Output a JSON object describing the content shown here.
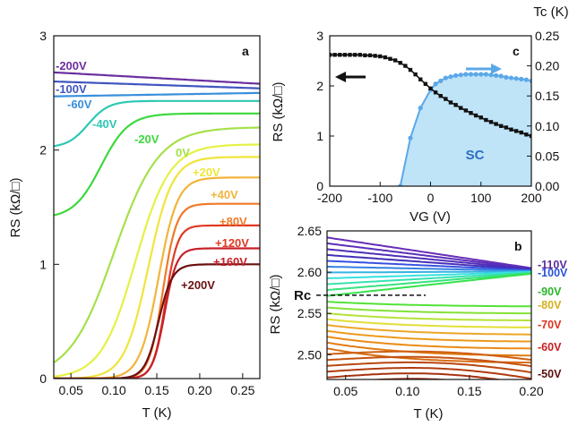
{
  "chart_data": [
    {
      "panel": "a",
      "type": "line",
      "panel_label": "a",
      "xlabel": "T (K)",
      "ylabel": "RS (kΩ/□)",
      "xlim": [
        0.03,
        0.27
      ],
      "ylim": [
        0,
        3
      ],
      "x_ticks": [
        "0.05",
        "0.10",
        "0.15",
        "0.20",
        "0.25"
      ],
      "x_tick_values": [
        0.05,
        0.1,
        0.15,
        0.2,
        0.25
      ],
      "y_ticks": [
        "0",
        "1",
        "2",
        "3"
      ],
      "y_tick_values": [
        0,
        1,
        2,
        3
      ],
      "series": [
        {
          "name": "-200V",
          "color": "#6a2fa0",
          "shape": "flat",
          "y_high": 2.58,
          "y_low": 2.68
        },
        {
          "name": "-100V",
          "color": "#3f55c0",
          "shape": "flat",
          "y_high": 2.54,
          "y_low": 2.6
        },
        {
          "name": "-60V",
          "color": "#3a8fdc",
          "shape": "flat",
          "y_high": 2.5,
          "y_low": 2.47
        },
        {
          "name": "-40V",
          "color": "#2ec8b4",
          "shape": "sig",
          "y_high": 2.43,
          "y_low": 2.02,
          "tc": 0.07,
          "w": 0.012
        },
        {
          "name": "-20V",
          "color": "#3dd83d",
          "shape": "sig",
          "y_high": 2.32,
          "y_low": 1.4,
          "tc": 0.085,
          "w": 0.016
        },
        {
          "name": "0V",
          "color": "#a6e04a",
          "shape": "sig",
          "y_high": 2.2,
          "y_low": 0.0,
          "tc": 0.1,
          "w": 0.026
        },
        {
          "name": "",
          "color": "#e4f244",
          "shape": "sig",
          "y_high": 2.05,
          "y_low": 0.0,
          "tc": 0.125,
          "w": 0.02
        },
        {
          "name": "+20V",
          "color": "#f0e53a",
          "shape": "sig",
          "y_high": 1.94,
          "y_low": 0.0,
          "tc": 0.14,
          "w": 0.014
        },
        {
          "name": "+40V",
          "color": "#f2b43a",
          "shape": "sig",
          "y_high": 1.76,
          "y_low": 0.0,
          "tc": 0.152,
          "w": 0.011
        },
        {
          "name": "+80V",
          "color": "#f07a28",
          "shape": "sig",
          "y_high": 1.53,
          "y_low": 0.0,
          "tc": 0.157,
          "w": 0.008
        },
        {
          "name": "+120V",
          "color": "#e03a22",
          "shape": "sig",
          "y_high": 1.34,
          "y_low": 0.0,
          "tc": 0.16,
          "w": 0.007
        },
        {
          "name": "+160V",
          "color": "#c8202a",
          "shape": "sig",
          "y_high": 1.14,
          "y_low": 0.0,
          "tc": 0.159,
          "w": 0.007
        },
        {
          "name": "+200V",
          "color": "#6b1010",
          "shape": "sig",
          "y_high": 1.0,
          "y_low": 0.0,
          "tc": 0.152,
          "w": 0.008
        }
      ]
    },
    {
      "panel": "c",
      "type": "line",
      "panel_label": "c",
      "xlabel": "VG (V)",
      "ylabel_left": "RS (kΩ/□)",
      "ylabel_right": "Tc (K)",
      "xlim": [
        -200,
        200
      ],
      "ylim_left": [
        0,
        3
      ],
      "ylim_right": [
        0,
        0.25
      ],
      "x_ticks": [
        "-200",
        "-100",
        "0",
        "100",
        "200"
      ],
      "x_tick_values": [
        -200,
        -100,
        0,
        100,
        200
      ],
      "y_left_ticks": [
        "0",
        "1",
        "2",
        "3"
      ],
      "y_left_tick_values": [
        0,
        1,
        2,
        3
      ],
      "y_right_ticks": [
        "0.00",
        "0.05",
        "0.10",
        "0.15",
        "0.20",
        "0.25"
      ],
      "y_right_tick_values": [
        0,
        0.05,
        0.1,
        0.15,
        0.2,
        0.25
      ],
      "region_label": "SC",
      "rs_series": {
        "name": "RS",
        "color": "#111111",
        "x": [
          -200,
          -190,
          -180,
          -170,
          -160,
          -150,
          -140,
          -130,
          -120,
          -110,
          -100,
          -90,
          -80,
          -70,
          -60,
          -50,
          -40,
          -30,
          -20,
          -10,
          0,
          10,
          20,
          30,
          40,
          50,
          60,
          70,
          80,
          90,
          100,
          110,
          120,
          130,
          140,
          150,
          160,
          170,
          180,
          190,
          200
        ],
        "y": [
          2.62,
          2.62,
          2.62,
          2.62,
          2.62,
          2.62,
          2.62,
          2.61,
          2.61,
          2.6,
          2.59,
          2.57,
          2.54,
          2.51,
          2.46,
          2.4,
          2.32,
          2.23,
          2.13,
          2.04,
          1.95,
          1.87,
          1.8,
          1.74,
          1.67,
          1.62,
          1.56,
          1.51,
          1.46,
          1.41,
          1.37,
          1.32,
          1.28,
          1.24,
          1.2,
          1.17,
          1.13,
          1.1,
          1.07,
          1.03,
          1.0
        ]
      },
      "tc_series": {
        "name": "Tc",
        "color": "#5ba8e8",
        "x": [
          -60,
          -40,
          -20,
          0,
          10,
          20,
          30,
          40,
          50,
          60,
          70,
          80,
          90,
          100,
          110,
          120,
          130,
          140,
          150,
          160,
          170,
          180,
          190,
          200
        ],
        "y": [
          0.0,
          0.08,
          0.13,
          0.16,
          0.17,
          0.175,
          0.18,
          0.182,
          0.184,
          0.185,
          0.186,
          0.186,
          0.186,
          0.186,
          0.186,
          0.185,
          0.184,
          0.183,
          0.181,
          0.18,
          0.179,
          0.178,
          0.177,
          0.175
        ]
      }
    },
    {
      "panel": "b",
      "type": "line",
      "panel_label": "b",
      "xlabel": "T (K)",
      "ylabel": "RS (kΩ/□)",
      "xlim": [
        0.035,
        0.2
      ],
      "ylim": [
        2.47,
        2.65
      ],
      "x_ticks": [
        "0.05",
        "0.10",
        "0.15",
        "0.20"
      ],
      "x_tick_values": [
        0.05,
        0.1,
        0.15,
        0.2
      ],
      "y_ticks": [
        "2.50",
        "2.55",
        "2.60",
        "2.65"
      ],
      "y_tick_values": [
        2.5,
        2.55,
        2.6,
        2.65
      ],
      "rc_label": "Rc",
      "rc_value": 2.572,
      "curve_count": 30,
      "vg_range": [
        -110,
        -50
      ],
      "legend": [
        {
          "label": "-110V",
          "color": "#5b2a9e"
        },
        {
          "label": "-100V",
          "color": "#2a52d8"
        },
        {
          "label": "-90V",
          "color": "#2ab52a"
        },
        {
          "label": "-80V",
          "color": "#d4b020"
        },
        {
          "label": "-70V",
          "color": "#e03020"
        },
        {
          "label": "-60V",
          "color": "#c81e1e"
        },
        {
          "label": "-50V",
          "color": "#5a0e0e"
        }
      ]
    }
  ]
}
